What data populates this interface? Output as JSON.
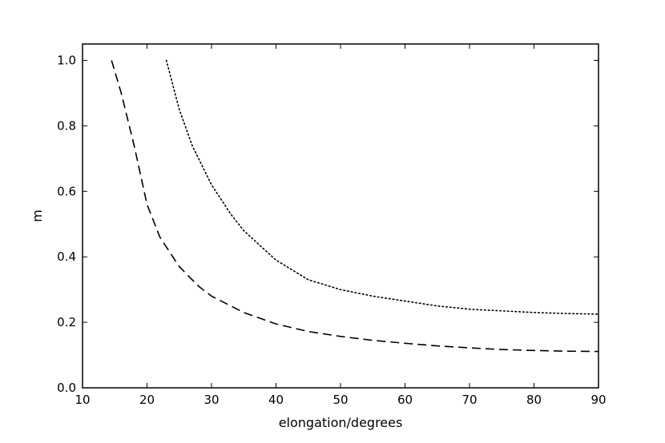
{
  "chart_data": {
    "type": "line",
    "title": "",
    "xlabel": "elongation/degrees",
    "ylabel": "m",
    "xlim": [
      10,
      90
    ],
    "ylim": [
      0.0,
      1.05
    ],
    "grid": false,
    "x_ticks": [
      10,
      20,
      30,
      40,
      50,
      60,
      70,
      80,
      90
    ],
    "y_ticks": [
      0.0,
      0.2,
      0.4,
      0.6,
      0.8,
      1.0
    ],
    "x_tick_labels": [
      "10",
      "20",
      "30",
      "40",
      "50",
      "60",
      "70",
      "80",
      "90"
    ],
    "y_tick_labels": [
      "0.0",
      "0.2",
      "0.4",
      "0.6",
      "0.8",
      "1.0"
    ],
    "series": [
      {
        "style": "dashed",
        "color": "#000000",
        "points": [
          [
            14.5,
            1.0
          ],
          [
            16,
            0.9
          ],
          [
            18,
            0.74
          ],
          [
            20,
            0.56
          ],
          [
            22,
            0.46
          ],
          [
            25,
            0.37
          ],
          [
            28,
            0.31
          ],
          [
            30,
            0.28
          ],
          [
            35,
            0.23
          ],
          [
            40,
            0.195
          ],
          [
            45,
            0.172
          ],
          [
            50,
            0.157
          ],
          [
            55,
            0.145
          ],
          [
            60,
            0.136
          ],
          [
            65,
            0.128
          ],
          [
            70,
            0.122
          ],
          [
            75,
            0.117
          ],
          [
            80,
            0.114
          ],
          [
            85,
            0.112
          ],
          [
            90,
            0.111
          ]
        ]
      },
      {
        "style": "dotted",
        "color": "#000000",
        "points": [
          [
            23,
            1.0
          ],
          [
            25,
            0.85
          ],
          [
            27,
            0.74
          ],
          [
            30,
            0.62
          ],
          [
            33,
            0.53
          ],
          [
            35,
            0.48
          ],
          [
            40,
            0.39
          ],
          [
            45,
            0.33
          ],
          [
            50,
            0.3
          ],
          [
            55,
            0.28
          ],
          [
            60,
            0.265
          ],
          [
            65,
            0.25
          ],
          [
            70,
            0.24
          ],
          [
            75,
            0.235
          ],
          [
            80,
            0.23
          ],
          [
            85,
            0.227
          ],
          [
            90,
            0.225
          ]
        ]
      }
    ]
  }
}
